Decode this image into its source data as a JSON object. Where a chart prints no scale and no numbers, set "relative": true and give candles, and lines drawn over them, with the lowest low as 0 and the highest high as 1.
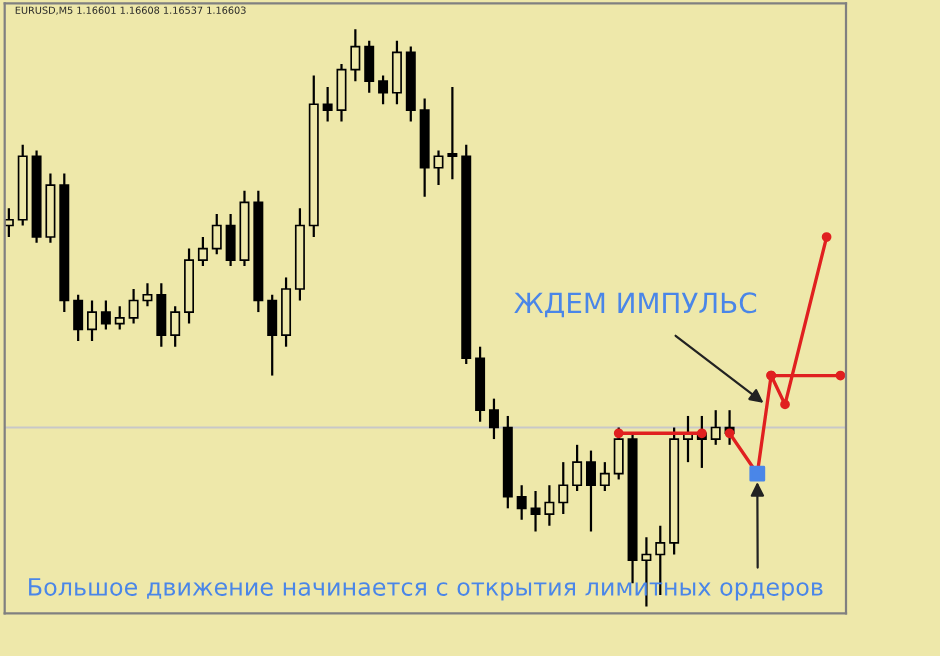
{
  "chart_data": {
    "type": "candlestick",
    "relative": true,
    "color": "#000000",
    "categories": [
      null,
      null,
      null,
      null,
      null,
      null,
      null,
      null,
      null,
      null,
      null,
      null,
      null,
      null,
      null,
      null,
      null,
      null,
      null,
      null,
      null,
      null,
      null,
      null,
      null,
      null,
      null,
      null,
      null,
      null,
      null,
      null,
      null,
      null,
      null,
      null,
      null,
      null,
      null,
      null,
      null,
      null,
      null,
      null,
      null,
      null,
      null,
      null,
      null,
      null,
      null,
      null,
      null,
      null,
      null,
      null,
      null,
      null,
      null,
      null,
      null
    ],
    "ohlc": [
      [
        0.66,
        0.69,
        0.64,
        0.67
      ],
      [
        0.67,
        0.8,
        0.66,
        0.78
      ],
      [
        0.78,
        0.79,
        0.63,
        0.64
      ],
      [
        0.64,
        0.75,
        0.63,
        0.73
      ],
      [
        0.73,
        0.75,
        0.51,
        0.53
      ],
      [
        0.53,
        0.54,
        0.46,
        0.48
      ],
      [
        0.48,
        0.53,
        0.46,
        0.51
      ],
      [
        0.51,
        0.53,
        0.48,
        0.49
      ],
      [
        0.49,
        0.52,
        0.48,
        0.5
      ],
      [
        0.5,
        0.55,
        0.49,
        0.53
      ],
      [
        0.53,
        0.56,
        0.52,
        0.54
      ],
      [
        0.54,
        0.56,
        0.45,
        0.47
      ],
      [
        0.47,
        0.52,
        0.45,
        0.51
      ],
      [
        0.51,
        0.62,
        0.49,
        0.6
      ],
      [
        0.6,
        0.64,
        0.59,
        0.62
      ],
      [
        0.62,
        0.68,
        0.61,
        0.66
      ],
      [
        0.66,
        0.68,
        0.59,
        0.6
      ],
      [
        0.6,
        0.72,
        0.59,
        0.7
      ],
      [
        0.7,
        0.72,
        0.51,
        0.53
      ],
      [
        0.53,
        0.54,
        0.4,
        0.47
      ],
      [
        0.47,
        0.57,
        0.45,
        0.55
      ],
      [
        0.55,
        0.69,
        0.53,
        0.66
      ],
      [
        0.66,
        0.92,
        0.64,
        0.87
      ],
      [
        0.87,
        0.9,
        0.84,
        0.86
      ],
      [
        0.86,
        0.94,
        0.84,
        0.93
      ],
      [
        0.93,
        1.0,
        0.91,
        0.97
      ],
      [
        0.97,
        0.98,
        0.89,
        0.91
      ],
      [
        0.91,
        0.92,
        0.87,
        0.89
      ],
      [
        0.89,
        0.98,
        0.87,
        0.96
      ],
      [
        0.96,
        0.97,
        0.84,
        0.86
      ],
      [
        0.86,
        0.88,
        0.71,
        0.76
      ],
      [
        0.76,
        0.79,
        0.73,
        0.78
      ],
      [
        0.78,
        0.9,
        0.74,
        0.78
      ],
      [
        0.78,
        0.8,
        0.42,
        0.43
      ],
      [
        0.43,
        0.45,
        0.32,
        0.34
      ],
      [
        0.34,
        0.36,
        0.29,
        0.31
      ],
      [
        0.31,
        0.33,
        0.17,
        0.19
      ],
      [
        0.19,
        0.21,
        0.15,
        0.17
      ],
      [
        0.17,
        0.2,
        0.13,
        0.16
      ],
      [
        0.16,
        0.21,
        0.14,
        0.18
      ],
      [
        0.18,
        0.25,
        0.16,
        0.21
      ],
      [
        0.21,
        0.28,
        0.2,
        0.25
      ],
      [
        0.25,
        0.27,
        0.13,
        0.21
      ],
      [
        0.21,
        0.25,
        0.2,
        0.23
      ],
      [
        0.23,
        0.31,
        0.22,
        0.29
      ],
      [
        0.29,
        0.3,
        0.04,
        0.08
      ],
      [
        0.08,
        0.12,
        0.0,
        0.09
      ],
      [
        0.09,
        0.14,
        0.02,
        0.11
      ],
      [
        0.11,
        0.31,
        0.09,
        0.29
      ],
      [
        0.29,
        0.33,
        0.25,
        0.3
      ],
      [
        0.3,
        0.33,
        0.24,
        0.29
      ],
      [
        0.29,
        0.34,
        0.28,
        0.31
      ],
      [
        0.31,
        0.34,
        0.28,
        0.3
      ],
      null,
      null,
      null,
      null,
      null,
      null,
      null,
      null
    ],
    "series": [
      {
        "type": "line",
        "color": "#e02020",
        "marker": "circle",
        "values": [
          null,
          null,
          null,
          null,
          null,
          null,
          null,
          null,
          null,
          null,
          null,
          null,
          null,
          null,
          null,
          null,
          null,
          null,
          null,
          null,
          null,
          null,
          null,
          null,
          null,
          null,
          null,
          null,
          null,
          null,
          null,
          null,
          null,
          null,
          null,
          null,
          null,
          null,
          null,
          null,
          null,
          null,
          null,
          null,
          null,
          null,
          null,
          null,
          null,
          null,
          null,
          null,
          0.3,
          null,
          0.23,
          0.4,
          0.35,
          null,
          null,
          0.64,
          null
        ]
      },
      {
        "type": "line",
        "color": "#e02020",
        "marker": "circle",
        "values": [
          null,
          null,
          null,
          null,
          null,
          null,
          null,
          null,
          null,
          null,
          null,
          null,
          null,
          null,
          null,
          null,
          null,
          null,
          null,
          null,
          null,
          null,
          null,
          null,
          null,
          null,
          null,
          null,
          null,
          null,
          null,
          null,
          null,
          null,
          null,
          null,
          null,
          null,
          null,
          null,
          null,
          null,
          null,
          null,
          0.3,
          null,
          null,
          null,
          null,
          null,
          0.3,
          null,
          null,
          null,
          null,
          null,
          null,
          null,
          null,
          null,
          null
        ]
      },
      {
        "type": "line",
        "color": "#e02020",
        "marker": "circle",
        "values": [
          null,
          null,
          null,
          null,
          null,
          null,
          null,
          null,
          null,
          null,
          null,
          null,
          null,
          null,
          null,
          null,
          null,
          null,
          null,
          null,
          null,
          null,
          null,
          null,
          null,
          null,
          null,
          null,
          null,
          null,
          null,
          null,
          null,
          null,
          null,
          null,
          null,
          null,
          null,
          null,
          null,
          null,
          null,
          null,
          null,
          null,
          null,
          null,
          null,
          null,
          null,
          null,
          null,
          null,
          null,
          0.4,
          null,
          null,
          null,
          null,
          0.4
        ]
      },
      {
        "type": "scatter",
        "color": "#4a86e8",
        "marker": "square",
        "values": [
          null,
          null,
          null,
          null,
          null,
          null,
          null,
          null,
          null,
          null,
          null,
          null,
          null,
          null,
          null,
          null,
          null,
          null,
          null,
          null,
          null,
          null,
          null,
          null,
          null,
          null,
          null,
          null,
          null,
          null,
          null,
          null,
          null,
          null,
          null,
          null,
          null,
          null,
          null,
          null,
          null,
          null,
          null,
          null,
          null,
          null,
          null,
          null,
          null,
          null,
          null,
          null,
          null,
          null,
          0.23,
          null,
          null,
          null,
          null,
          null,
          null
        ]
      }
    ],
    "ref_lines": [
      {
        "axis": "y",
        "value": 0.31,
        "color": "#c8c8c8"
      }
    ],
    "annotations": [
      "EURUSD,M5 1.16601 1.16608 1.16537 1.16603",
      "ЖДЕМ ИМПУЛЬС",
      "Большое движение начинается с открытия лимитных ордеров"
    ]
  }
}
